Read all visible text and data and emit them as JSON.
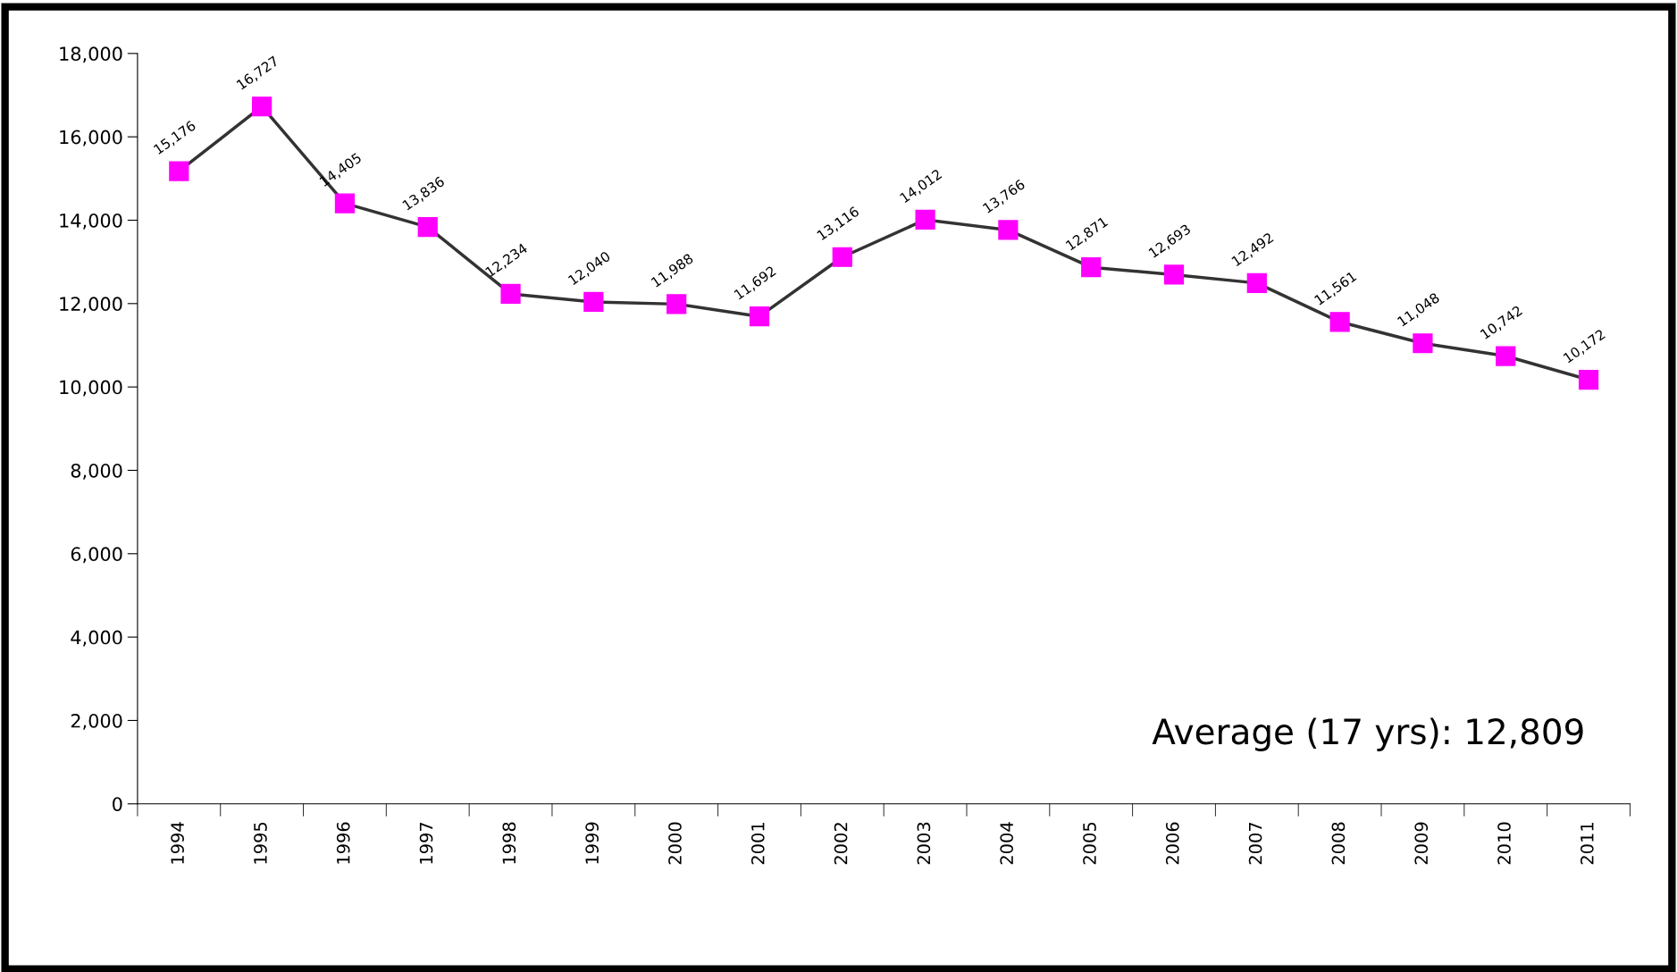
{
  "chart_data": {
    "type": "line",
    "categories": [
      "1994",
      "1995",
      "1996",
      "1997",
      "1998",
      "1999",
      "2000",
      "2001",
      "2002",
      "2003",
      "2004",
      "2005",
      "2006",
      "2007",
      "2008",
      "2009",
      "2010",
      "2011"
    ],
    "series": [
      {
        "color": "#ff00ff",
        "values": [
          15176,
          16727,
          14405,
          13836,
          12234,
          12040,
          11988,
          11692,
          13116,
          14012,
          13766,
          12871,
          12693,
          12492,
          11561,
          11048,
          10742,
          10172
        ],
        "value_labels": [
          "15,176",
          "16,727",
          "14,405",
          "13,836",
          "12,234",
          "12,040",
          "11,988",
          "11,692",
          "13,116",
          "14,012",
          "13,766",
          "12,871",
          "12,693",
          "12,492",
          "11,561",
          "11,048",
          "10,742",
          "10,172"
        ]
      }
    ],
    "ylim": [
      0,
      18000
    ],
    "yticks": [
      0,
      {
        "value": 2000,
        "label": "2,000"
      },
      {
        "value": 4000,
        "label": "4,000"
      },
      {
        "value": 6000,
        "label": "6,000"
      },
      {
        "value": 8000,
        "label": "8,000"
      },
      {
        "value": 10000,
        "label": "10,000"
      },
      {
        "value": 12000,
        "label": "12,000"
      },
      {
        "value": 14000,
        "label": "14,000"
      },
      {
        "value": 16000,
        "label": "16,000"
      },
      {
        "value": 18000,
        "label": "18,000"
      }
    ],
    "marker": "square",
    "line_style": "solid",
    "grid": false,
    "legend": false,
    "annotations": [
      "Average (17 yrs): 12,809"
    ]
  }
}
